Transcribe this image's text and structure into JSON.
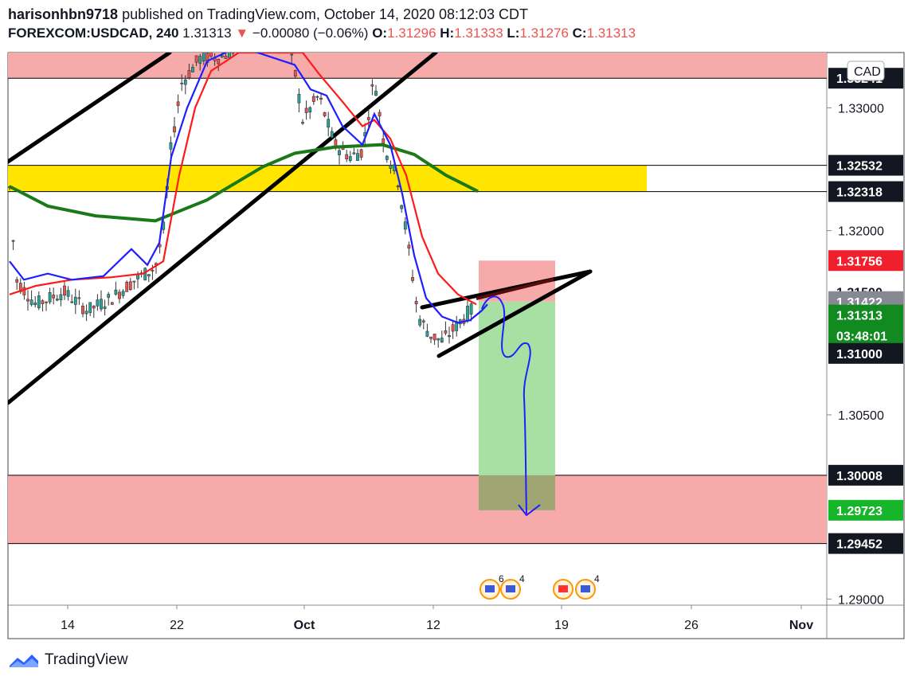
{
  "header": {
    "author": "harisonhbn9718",
    "published_text": "published on TradingView.com, October 14, 2020 08:12:03 CDT",
    "symbol": "FOREXCOM:USDCAD, 240",
    "last": "1.31313",
    "change_arrow": "▼",
    "change": "−0.00080 (−0.06%)",
    "o_label": "O:",
    "o_val": "1.31296",
    "h_label": "H:",
    "h_val": "1.31333",
    "l_label": "L:",
    "l_val": "1.31276",
    "c_label": "C:",
    "c_val": "1.31313"
  },
  "footer": {
    "brand": "TradingView",
    "logo_icon": "tradingview-logo-icon"
  },
  "chart_data": {
    "type": "candlestick",
    "currency_label": "CAD",
    "ylim": [
      1.2895,
      1.3345
    ],
    "x_ticks": [
      "14",
      "22",
      "Oct",
      "12",
      "19",
      "26",
      "Nov"
    ],
    "y_ticks": [
      "1.33000",
      "1.32000",
      "1.30500",
      "1.29000"
    ],
    "price_labels": [
      {
        "text": "1.33241",
        "value": 1.33241,
        "bg": "#131722",
        "fg": "#ffffff"
      },
      {
        "text": "1.32532",
        "value": 1.32532,
        "bg": "#131722",
        "fg": "#ffffff"
      },
      {
        "text": "1.32318",
        "value": 1.32318,
        "bg": "#131722",
        "fg": "#ffffff"
      },
      {
        "text": "1.31756",
        "value": 1.31756,
        "bg": "#ef1f2e",
        "fg": "#ffffff"
      },
      {
        "text": "1.31500",
        "value": 1.315,
        "bg": "#ffffff",
        "fg": "#131722"
      },
      {
        "text": "1.31422",
        "value": 1.31422,
        "bg": "#868993",
        "fg": "#ffffff"
      },
      {
        "text": "1.31313",
        "value": 1.31313,
        "bg": "#118a1f",
        "fg": "#ffffff"
      },
      {
        "text": "03:48:01",
        "value": 1.31145,
        "bg": "#118a1f",
        "fg": "#ffffff"
      },
      {
        "text": "1.31000",
        "value": 1.31,
        "bg": "#131722",
        "fg": "#ffffff"
      },
      {
        "text": "1.30008",
        "value": 1.30008,
        "bg": "#131722",
        "fg": "#ffffff"
      },
      {
        "text": "1.29723",
        "value": 1.29723,
        "bg": "#16b52a",
        "fg": "#ffffff"
      },
      {
        "text": "1.29452",
        "value": 1.29452,
        "bg": "#131722",
        "fg": "#ffffff"
      }
    ],
    "zones": [
      {
        "name": "supply-zone",
        "top": 1.3345,
        "bottom": 1.33241,
        "color": "#f6aaa9"
      },
      {
        "name": "resistance-zone",
        "top": 1.32532,
        "bottom": 1.32318,
        "color": "#ffe500"
      },
      {
        "name": "demand-zone",
        "top": 1.30008,
        "bottom": 1.29452,
        "color": "#f6aaa9"
      }
    ],
    "position": {
      "type": "short",
      "entry": 1.31422,
      "stop": 1.31756,
      "target": 1.29723
    },
    "events": [
      {
        "label": "6"
      },
      {
        "label": "4"
      },
      {
        "label": "4"
      }
    ],
    "colors": {
      "bull": "#26a69a",
      "bear": "#ef5350",
      "ema_fast": "#1e1eff",
      "ema_mid": "#ff1a1a",
      "ma_slow": "#1a7a1a",
      "channel": "#000000",
      "text": "#131722"
    }
  }
}
